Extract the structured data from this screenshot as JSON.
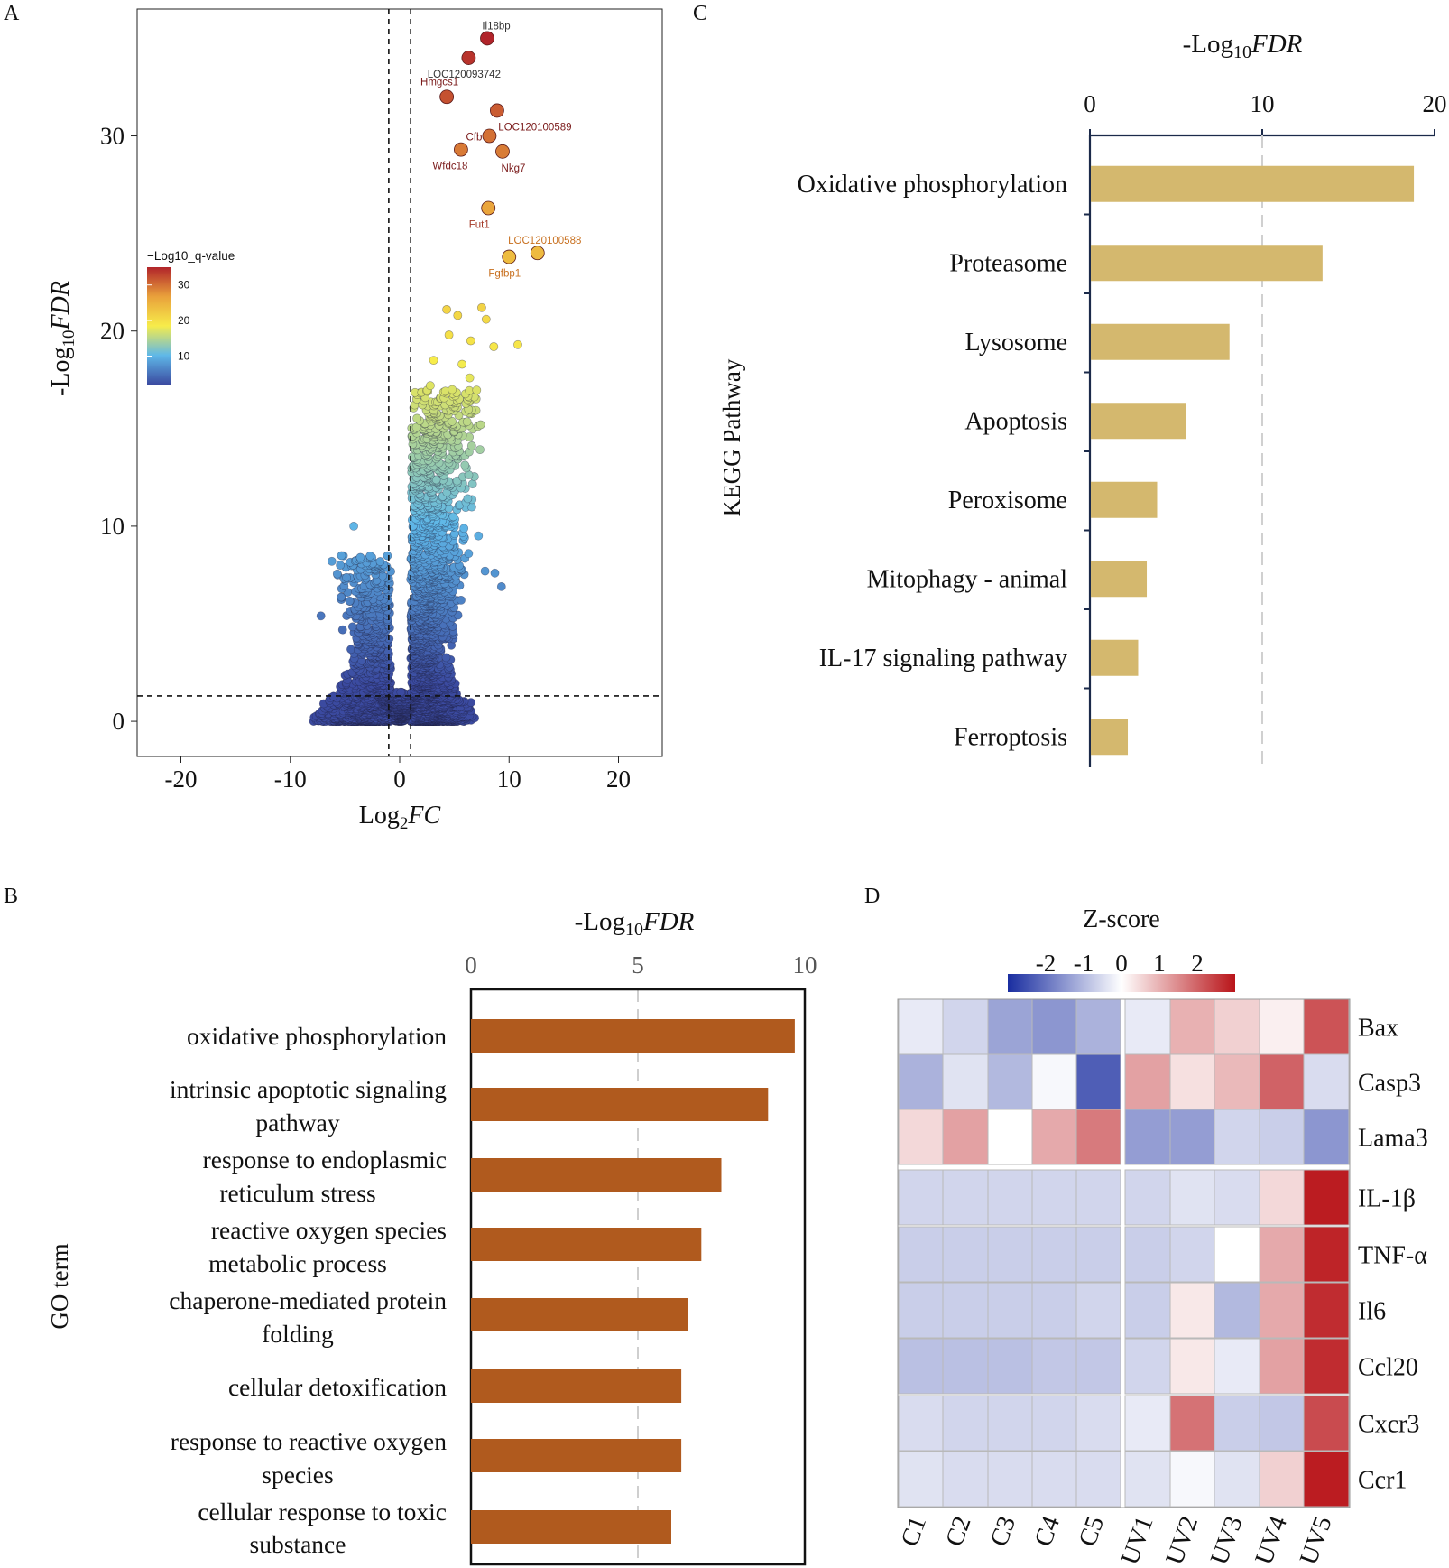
{
  "panels": {
    "A": {
      "letter": "A"
    },
    "B": {
      "letter": "B"
    },
    "C": {
      "letter": "C"
    },
    "D": {
      "letter": "D"
    }
  },
  "chart_data": [
    {
      "panel": "A",
      "type": "scatter",
      "title": "",
      "xlabel_prefix": "Log",
      "xlabel_sub": "2",
      "xlabel_italic": "FC",
      "ylabel_prefix": "-Log",
      "ylabel_sub": "10",
      "ylabel_italic": "FDR",
      "xlim": [
        -24,
        24
      ],
      "ylim": [
        -1.8,
        36.5
      ],
      "xticks": [
        -20,
        -10,
        0,
        10,
        20
      ],
      "yticks": [
        0,
        10,
        20,
        30
      ],
      "thresholds": {
        "log2fc": [
          -1,
          1
        ],
        "neg_log10_fdr": 1.3
      },
      "colorbar": {
        "title": "−Log10_q-value",
        "ticks": [
          10,
          20,
          30
        ],
        "range": [
          2,
          35
        ],
        "colors": [
          "#3b4aa0",
          "#5fb8e8",
          "#f7ec4a",
          "#e9a13b",
          "#b1242a"
        ]
      },
      "labeled_points": [
        {
          "label": "Il18bp",
          "x": 8.0,
          "y": 35.0,
          "label_color": "#333333"
        },
        {
          "label": "LOC120093742",
          "x": 6.3,
          "y": 34.0,
          "label_color": "#333333"
        },
        {
          "label": "Hmgcs1",
          "x": 4.3,
          "y": 32.0,
          "label_color": "#7a1a1a"
        },
        {
          "label": "LOC120100589",
          "x": 8.9,
          "y": 31.3,
          "label_color": "#7a1a1a"
        },
        {
          "label": "Cfb",
          "x": 8.2,
          "y": 30.0,
          "label_color": "#7a1a1a"
        },
        {
          "label": "Wfdc18",
          "x": 5.6,
          "y": 29.3,
          "label_color": "#7a1a1a"
        },
        {
          "label": "Nkg7",
          "x": 9.4,
          "y": 29.2,
          "label_color": "#7a1a1a"
        },
        {
          "label": "Fut1",
          "x": 8.1,
          "y": 26.3,
          "label_color": "#a53b2a"
        },
        {
          "label": "LOC120100588",
          "x": 12.6,
          "y": 24.0,
          "label_color": "#c8701f"
        },
        {
          "label": "Fgfbp1",
          "x": 10.0,
          "y": 23.8,
          "label_color": "#c8701f"
        }
      ],
      "extra_points": [
        {
          "x": 4.3,
          "y": 21.1
        },
        {
          "x": 5.3,
          "y": 20.8
        },
        {
          "x": 7.5,
          "y": 21.2
        },
        {
          "x": 7.9,
          "y": 20.6
        },
        {
          "x": 10.8,
          "y": 19.3
        },
        {
          "x": 4.5,
          "y": 19.8
        },
        {
          "x": 6.5,
          "y": 19.5
        },
        {
          "x": 8.6,
          "y": 19.2
        },
        {
          "x": 3.1,
          "y": 18.5
        },
        {
          "x": 5.7,
          "y": 18.3
        },
        {
          "x": 6.4,
          "y": 17.6
        },
        {
          "x": 4.8,
          "y": 17.0
        },
        {
          "x": 6.2,
          "y": 16.5
        },
        {
          "x": 2.8,
          "y": 17.2
        },
        {
          "x": 7.4,
          "y": 15.2
        },
        {
          "x": 5.5,
          "y": 15.0
        },
        {
          "x": -4.2,
          "y": 10.0
        },
        {
          "x": -6.2,
          "y": 8.2
        },
        {
          "x": -3.6,
          "y": 8.4
        },
        {
          "x": -2.3,
          "y": 7.8
        },
        {
          "x": -7.2,
          "y": 5.4
        },
        {
          "x": -5.3,
          "y": 6.8
        },
        {
          "x": 9.3,
          "y": 6.9
        },
        {
          "x": 8.7,
          "y": 7.6
        },
        {
          "x": 7.8,
          "y": 7.7
        },
        {
          "x": 6.3,
          "y": 8.6
        },
        {
          "x": 7.2,
          "y": 9.5
        }
      ]
    },
    {
      "panel": "B",
      "type": "bar",
      "orientation": "horizontal",
      "title_prefix": "-Log",
      "title_sub": "10",
      "title_italic": "FDR",
      "ylabel": "GO term",
      "xlim": [
        0,
        10
      ],
      "xticks": [
        0,
        5,
        10
      ],
      "reference_line": 5,
      "bar_color": "#b05a1e",
      "categories": [
        [
          "oxidative phosphorylation"
        ],
        [
          "intrinsic apoptotic signaling",
          "pathway"
        ],
        [
          "response to endoplasmic",
          "reticulum stress"
        ],
        [
          "reactive oxygen species",
          "metabolic process"
        ],
        [
          "chaperone-mediated protein",
          "folding"
        ],
        [
          "cellular detoxification"
        ],
        [
          "response to reactive oxygen",
          "species"
        ],
        [
          "cellular response to toxic",
          "substance"
        ]
      ],
      "values": [
        9.7,
        8.9,
        7.5,
        6.9,
        6.5,
        6.3,
        6.3,
        6.0
      ]
    },
    {
      "panel": "C",
      "type": "bar",
      "orientation": "horizontal",
      "title_prefix": "-Log",
      "title_sub": "10",
      "title_italic": "FDR",
      "ylabel": "KEGG Pathway",
      "xlim": [
        0,
        20
      ],
      "xticks": [
        0,
        10,
        20
      ],
      "reference_line": 10,
      "bar_color": "#d4b86e",
      "categories": [
        "Oxidative phosphorylation",
        "Proteasome",
        "Lysosome",
        "Apoptosis",
        "Peroxisome",
        "Mitophagy - animal",
        "IL-17 signaling pathway",
        "Ferroptosis"
      ],
      "values": [
        18.8,
        13.5,
        8.1,
        5.6,
        3.9,
        3.3,
        2.8,
        2.2
      ]
    },
    {
      "panel": "D",
      "type": "heatmap",
      "title": "Z-score",
      "color_range": [
        -3,
        3
      ],
      "colorbar_ticks": [
        -2,
        -1,
        0,
        1,
        2
      ],
      "columns": [
        "C1",
        "C2",
        "C3",
        "C4",
        "C5",
        "UV1",
        "UV2",
        "UV3",
        "UV4",
        "UV5"
      ],
      "rows": [
        "Bax",
        "Casp3",
        "Lama3",
        "IL-1β",
        "TNF-α",
        "Il6",
        "Ccl20",
        "Cxcr3",
        "Ccr1"
      ],
      "row_groups": [
        3,
        6
      ],
      "column_groups": [
        5,
        5
      ],
      "values": [
        [
          -0.3,
          -0.6,
          -1.3,
          -1.5,
          -1.1,
          -0.3,
          1.0,
          0.6,
          0.2,
          2.2
        ],
        [
          -1.1,
          -0.4,
          -1.0,
          -0.1,
          -2.3,
          1.2,
          0.4,
          0.9,
          2.0,
          -0.5
        ],
        [
          0.5,
          1.2,
          0.0,
          1.1,
          1.7,
          -1.4,
          -1.4,
          -0.6,
          -0.7,
          -1.5
        ],
        [
          -0.6,
          -0.6,
          -0.6,
          -0.6,
          -0.6,
          -0.6,
          -0.4,
          -0.5,
          0.5,
          2.9
        ],
        [
          -0.7,
          -0.7,
          -0.7,
          -0.7,
          -0.7,
          -0.7,
          -0.6,
          0.0,
          1.1,
          2.8
        ],
        [
          -0.7,
          -0.7,
          -0.7,
          -0.7,
          -0.6,
          -0.7,
          0.3,
          -1.0,
          1.1,
          2.7
        ],
        [
          -0.9,
          -0.9,
          -0.9,
          -0.8,
          -0.8,
          -0.6,
          0.3,
          -0.3,
          1.2,
          2.7
        ],
        [
          -0.5,
          -0.6,
          -0.6,
          -0.6,
          -0.5,
          -0.3,
          1.8,
          -0.7,
          -0.8,
          2.3
        ],
        [
          -0.4,
          -0.5,
          -0.5,
          -0.5,
          -0.5,
          -0.4,
          -0.1,
          -0.4,
          0.6,
          2.9
        ]
      ]
    }
  ]
}
